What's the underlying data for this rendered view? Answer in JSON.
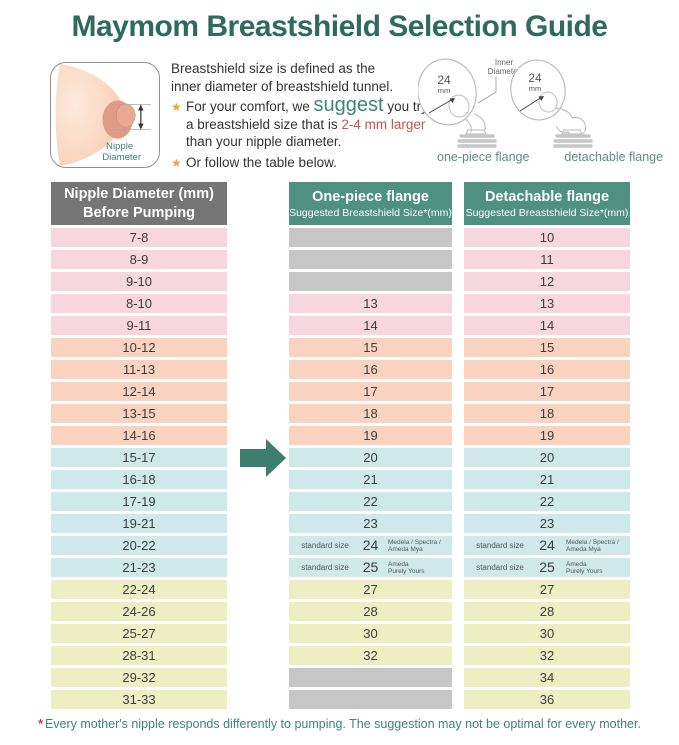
{
  "title": "Maymom Breastshield Selection Guide",
  "intro": {
    "star": "★",
    "line1": "Breastshield size is defined as the",
    "line2": "inner diameter of breastshield tunnel.",
    "bullet1": {
      "pre": "For your comfort, we ",
      "emphasis": "suggest",
      "mid": " you try a breastshield size that is ",
      "highlight": "2-4 mm larger",
      "post": " than your nipple diameter."
    },
    "bullet2": "Or follow the table below."
  },
  "nipple_illustration": {
    "label_line1": "Nipple",
    "label_line2": "Diameter"
  },
  "flange_illustrations": {
    "inner_diameter_line1": "Inner",
    "inner_diameter_line2": "Diameter",
    "one_piece": {
      "size": "24",
      "unit": "mm",
      "caption": "one-piece flange"
    },
    "detachable": {
      "size": "24",
      "unit": "mm",
      "caption": "detachable flange"
    }
  },
  "table": {
    "headers": [
      {
        "line1": "Nipple Diameter (mm)",
        "line2": "Before Pumping"
      },
      {
        "line1": "One-piece flange",
        "line2": "Suggested Breastshield Size*(mm)"
      },
      {
        "line1": "Detachable flange",
        "line2": "Suggested Breastshield Size*(mm)"
      }
    ],
    "rows": [
      {
        "nipple": "7-8",
        "one_piece": null,
        "detachable": "10",
        "group": "pink"
      },
      {
        "nipple": "8-9",
        "one_piece": null,
        "detachable": "11",
        "group": "pink"
      },
      {
        "nipple": "9-10",
        "one_piece": null,
        "detachable": "12",
        "group": "pink"
      },
      {
        "nipple": "8-10",
        "one_piece": "13",
        "detachable": "13",
        "group": "pink"
      },
      {
        "nipple": "9-11",
        "one_piece": "14",
        "detachable": "14",
        "group": "pink"
      },
      {
        "nipple": "10-12",
        "one_piece": "15",
        "detachable": "15",
        "group": "peach"
      },
      {
        "nipple": "11-13",
        "one_piece": "16",
        "detachable": "16",
        "group": "peach"
      },
      {
        "nipple": "12-14",
        "one_piece": "17",
        "detachable": "17",
        "group": "peach"
      },
      {
        "nipple": "13-15",
        "one_piece": "18",
        "detachable": "18",
        "group": "peach"
      },
      {
        "nipple": "14-16",
        "one_piece": "19",
        "detachable": "19",
        "group": "peach"
      },
      {
        "nipple": "15-17",
        "one_piece": "20",
        "detachable": "20",
        "group": "blue"
      },
      {
        "nipple": "16-18",
        "one_piece": "21",
        "detachable": "21",
        "group": "blue"
      },
      {
        "nipple": "17-19",
        "one_piece": "22",
        "detachable": "22",
        "group": "blue"
      },
      {
        "nipple": "19-21",
        "one_piece": "23",
        "detachable": "23",
        "group": "blue"
      },
      {
        "nipple": "20-22",
        "one_piece": "24",
        "detachable": "24",
        "group": "blue",
        "prefix": "standard size",
        "suffix": "Medela / Spectra /\nAmeda Mya"
      },
      {
        "nipple": "21-23",
        "one_piece": "25",
        "detachable": "25",
        "group": "blue",
        "prefix": "standard size",
        "suffix": "Ameda\nPurely Yours"
      },
      {
        "nipple": "22-24",
        "one_piece": "27",
        "detachable": "27",
        "group": "yellow"
      },
      {
        "nipple": "24-26",
        "one_piece": "28",
        "detachable": "28",
        "group": "yellow"
      },
      {
        "nipple": "25-27",
        "one_piece": "30",
        "detachable": "30",
        "group": "yellow"
      },
      {
        "nipple": "28-31",
        "one_piece": "32",
        "detachable": "32",
        "group": "yellow"
      },
      {
        "nipple": "29-32",
        "one_piece": null,
        "detachable": "34",
        "group": "yellow"
      },
      {
        "nipple": "31-33",
        "one_piece": null,
        "detachable": "36",
        "group": "yellow"
      }
    ]
  },
  "footnote": {
    "asterisk": "*",
    "text": "Every mother's nipple responds differently to pumping. The suggestion may not be optimal for every mother."
  },
  "colors": {
    "title_teal": "#2e6a5e",
    "accent_teal": "#3f8577",
    "highlight_red": "#c0544e",
    "star_orange": "#f0a43c",
    "header_gray": "#757575",
    "header_teal": "#4e9180",
    "row_pink": "#f8d6e0",
    "row_peach": "#f9d3c0",
    "row_blue": "#cfe8ea",
    "row_yellow": "#edefc3",
    "empty_gray": "#c6c6c6",
    "arrow_teal": "#3e7e70"
  }
}
